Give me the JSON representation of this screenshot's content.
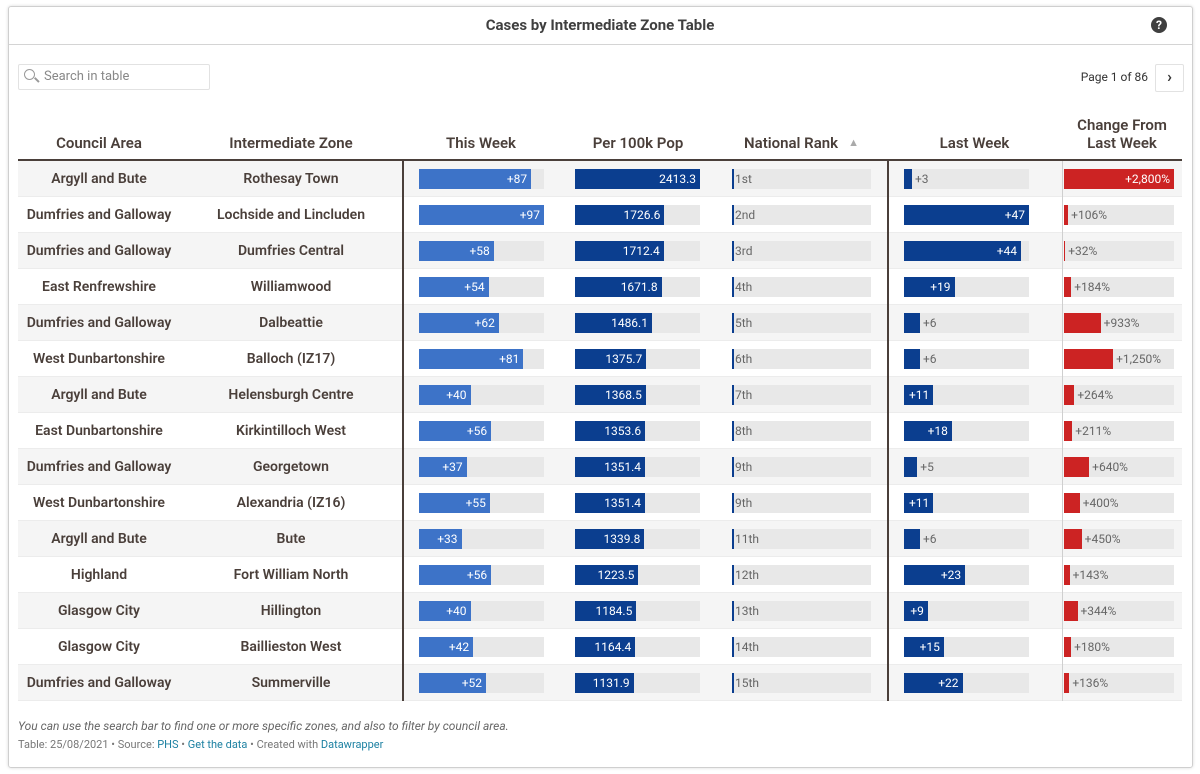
{
  "header": {
    "title": "Cases by Intermediate Zone Table",
    "help": "?"
  },
  "search": {
    "placeholder": "Search in table"
  },
  "pagination": {
    "label": "Page 1 of 86",
    "next": "›"
  },
  "table": {
    "columns": [
      "Council Area",
      "Intermediate Zone",
      "This Week",
      "Per 100k Pop",
      "National Rank",
      "Last Week",
      "Change From Last Week"
    ],
    "sort_indicator": "▲",
    "rows": [
      {
        "council": "Argyll and Bute",
        "zone": "Rothesay Town",
        "this_week": {
          "value": 87,
          "label": "+87"
        },
        "per_100k": 2413.3,
        "rank": {
          "value": 1,
          "label": "1st"
        },
        "last_week": {
          "value": 3,
          "label": "+3"
        },
        "change": {
          "value": 2800,
          "label": "+2,800%"
        }
      },
      {
        "council": "Dumfries and Galloway",
        "zone": "Lochside and Lincluden",
        "this_week": {
          "value": 97,
          "label": "+97"
        },
        "per_100k": 1726.6,
        "rank": {
          "value": 2,
          "label": "2nd"
        },
        "last_week": {
          "value": 47,
          "label": "+47"
        },
        "change": {
          "value": 106,
          "label": "+106%"
        }
      },
      {
        "council": "Dumfries and Galloway",
        "zone": "Dumfries Central",
        "this_week": {
          "value": 58,
          "label": "+58"
        },
        "per_100k": 1712.4,
        "rank": {
          "value": 3,
          "label": "3rd"
        },
        "last_week": {
          "value": 44,
          "label": "+44"
        },
        "change": {
          "value": 32,
          "label": "+32%"
        }
      },
      {
        "council": "East Renfrewshire",
        "zone": "Williamwood",
        "this_week": {
          "value": 54,
          "label": "+54"
        },
        "per_100k": 1671.8,
        "rank": {
          "value": 4,
          "label": "4th"
        },
        "last_week": {
          "value": 19,
          "label": "+19"
        },
        "change": {
          "value": 184,
          "label": "+184%"
        }
      },
      {
        "council": "Dumfries and Galloway",
        "zone": "Dalbeattie",
        "this_week": {
          "value": 62,
          "label": "+62"
        },
        "per_100k": 1486.1,
        "rank": {
          "value": 5,
          "label": "5th"
        },
        "last_week": {
          "value": 6,
          "label": "+6"
        },
        "change": {
          "value": 933,
          "label": "+933%"
        }
      },
      {
        "council": "West Dunbartonshire",
        "zone": "Balloch (IZ17)",
        "this_week": {
          "value": 81,
          "label": "+81"
        },
        "per_100k": 1375.7,
        "rank": {
          "value": 6,
          "label": "6th"
        },
        "last_week": {
          "value": 6,
          "label": "+6"
        },
        "change": {
          "value": 1250,
          "label": "+1,250%"
        }
      },
      {
        "council": "Argyll and Bute",
        "zone": "Helensburgh Centre",
        "this_week": {
          "value": 40,
          "label": "+40"
        },
        "per_100k": 1368.5,
        "rank": {
          "value": 7,
          "label": "7th"
        },
        "last_week": {
          "value": 11,
          "label": "+11"
        },
        "change": {
          "value": 264,
          "label": "+264%"
        }
      },
      {
        "council": "East Dunbartonshire",
        "zone": "Kirkintilloch West",
        "this_week": {
          "value": 56,
          "label": "+56"
        },
        "per_100k": 1353.6,
        "rank": {
          "value": 8,
          "label": "8th"
        },
        "last_week": {
          "value": 18,
          "label": "+18"
        },
        "change": {
          "value": 211,
          "label": "+211%"
        }
      },
      {
        "council": "Dumfries and Galloway",
        "zone": "Georgetown",
        "this_week": {
          "value": 37,
          "label": "+37"
        },
        "per_100k": 1351.4,
        "rank": {
          "value": 9,
          "label": "9th"
        },
        "last_week": {
          "value": 5,
          "label": "+5"
        },
        "change": {
          "value": 640,
          "label": "+640%"
        }
      },
      {
        "council": "West Dunbartonshire",
        "zone": "Alexandria (IZ16)",
        "this_week": {
          "value": 55,
          "label": "+55"
        },
        "per_100k": 1351.4,
        "rank": {
          "value": 9,
          "label": "9th"
        },
        "last_week": {
          "value": 11,
          "label": "+11"
        },
        "change": {
          "value": 400,
          "label": "+400%"
        }
      },
      {
        "council": "Argyll and Bute",
        "zone": "Bute",
        "this_week": {
          "value": 33,
          "label": "+33"
        },
        "per_100k": 1339.8,
        "rank": {
          "value": 11,
          "label": "11th"
        },
        "last_week": {
          "value": 6,
          "label": "+6"
        },
        "change": {
          "value": 450,
          "label": "+450%"
        }
      },
      {
        "council": "Highland",
        "zone": "Fort William North",
        "this_week": {
          "value": 56,
          "label": "+56"
        },
        "per_100k": 1223.5,
        "rank": {
          "value": 12,
          "label": "12th"
        },
        "last_week": {
          "value": 23,
          "label": "+23"
        },
        "change": {
          "value": 143,
          "label": "+143%"
        }
      },
      {
        "council": "Glasgow City",
        "zone": "Hillington",
        "this_week": {
          "value": 40,
          "label": "+40"
        },
        "per_100k": 1184.5,
        "rank": {
          "value": 13,
          "label": "13th"
        },
        "last_week": {
          "value": 9,
          "label": "+9"
        },
        "change": {
          "value": 344,
          "label": "+344%"
        }
      },
      {
        "council": "Glasgow City",
        "zone": "Baillieston West",
        "this_week": {
          "value": 42,
          "label": "+42"
        },
        "per_100k": 1164.4,
        "rank": {
          "value": 14,
          "label": "14th"
        },
        "last_week": {
          "value": 15,
          "label": "+15"
        },
        "change": {
          "value": 180,
          "label": "+180%"
        }
      },
      {
        "council": "Dumfries and Galloway",
        "zone": "Summerville",
        "this_week": {
          "value": 52,
          "label": "+52"
        },
        "per_100k": 1131.9,
        "rank": {
          "value": 15,
          "label": "15th"
        },
        "last_week": {
          "value": 22,
          "label": "+22"
        },
        "change": {
          "value": 136,
          "label": "+136%"
        }
      }
    ]
  },
  "colors": {
    "this_week": "#3d73c8",
    "per_100k": "#0b3e8f",
    "last_week": "#0b3e8f",
    "change": "#cc2323"
  },
  "notes": "You can use the search bar to find one or more specific zones, and also to filter by council area.",
  "footer": {
    "separator": "•",
    "date": "Table: 25/08/2021",
    "source_label": "Source:",
    "source": "PHS",
    "get_data": "Get the data",
    "created_label": "Created with",
    "created": "Datawrapper"
  }
}
